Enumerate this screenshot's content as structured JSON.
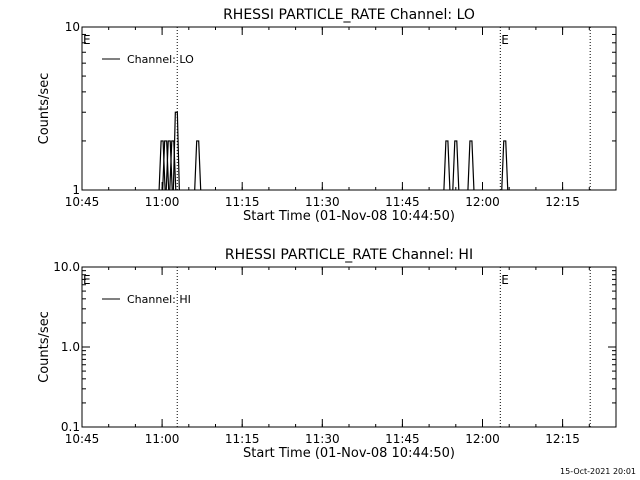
{
  "footer_timestamp": "15-Oct-2021 20:01",
  "chart_data": [
    {
      "type": "line",
      "title": "RHESSI PARTICLE_RATE Channel: LO",
      "xlabel": "Start Time (01-Nov-08 10:44:50)",
      "ylabel": "Counts/sec",
      "yscale": "log",
      "xlim": [
        "10:45",
        "12:25"
      ],
      "x_ticks": [
        "10:45",
        "11:00",
        "11:15",
        "11:30",
        "11:45",
        "12:00",
        "12:15"
      ],
      "y_ticks": [
        "1",
        "10"
      ],
      "ylim": [
        1,
        10
      ],
      "legend": "top-left",
      "series": [
        {
          "name": "Channel: LO",
          "points": [
            {
              "time": "11:00:00",
              "value": 2
            },
            {
              "time": "11:00:40",
              "value": 2
            },
            {
              "time": "11:01:20",
              "value": 2
            },
            {
              "time": "11:02:00",
              "value": 2
            },
            {
              "time": "11:02:40",
              "value": 3
            },
            {
              "time": "11:06:40",
              "value": 2
            },
            {
              "time": "11:53:20",
              "value": 2
            },
            {
              "time": "11:55:00",
              "value": 2
            },
            {
              "time": "11:57:50",
              "value": 2
            },
            {
              "time": "12:04:10",
              "value": 2
            }
          ]
        }
      ],
      "event_markers": [
        {
          "label": "E",
          "time": "11:02:50"
        },
        {
          "label": "E",
          "time": "12:03:20"
        },
        {
          "label": "",
          "time": "12:20:10"
        }
      ]
    },
    {
      "type": "line",
      "title": "RHESSI PARTICLE_RATE Channel: HI",
      "xlabel": "Start Time (01-Nov-08 10:44:50)",
      "ylabel": "Counts/sec",
      "yscale": "log",
      "xlim": [
        "10:45",
        "12:25"
      ],
      "x_ticks": [
        "10:45",
        "11:00",
        "11:15",
        "11:30",
        "11:45",
        "12:00",
        "12:15"
      ],
      "y_ticks": [
        "0.1",
        "1.0",
        "10.0"
      ],
      "ylim": [
        0.1,
        10
      ],
      "legend": "top-left",
      "series": [
        {
          "name": "Channel: HI",
          "points": []
        }
      ],
      "event_markers": [
        {
          "label": "E",
          "time": "11:02:50"
        },
        {
          "label": "E",
          "time": "12:03:20"
        },
        {
          "label": "",
          "time": "12:20:10"
        }
      ]
    }
  ]
}
